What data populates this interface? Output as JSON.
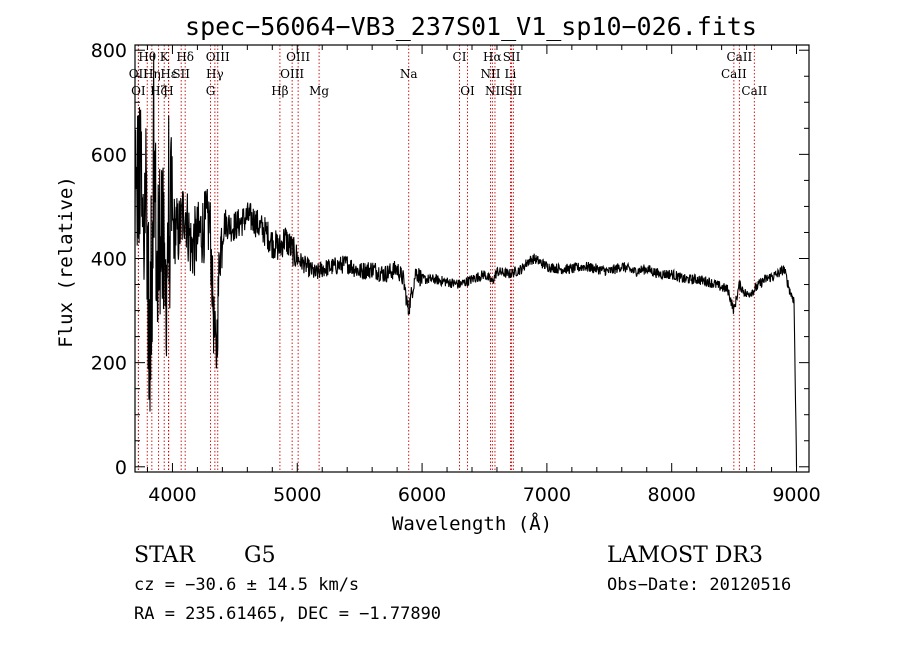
{
  "chart_data": {
    "type": "line",
    "title": "spec−56064−VB3_237S01_V1_sp10−026.fits",
    "xlabel": "Wavelength (Å)",
    "ylabel": "Flux (relative)",
    "xlim": [
      3700,
      9100
    ],
    "ylim": [
      -10,
      810
    ],
    "xticks": [
      4000,
      5000,
      6000,
      7000,
      8000,
      9000
    ],
    "xtick_labels": [
      "4000",
      "5000",
      "6000",
      "7000",
      "8000",
      "9000"
    ],
    "yticks": [
      0,
      200,
      400,
      600,
      800
    ],
    "ytick_labels": [
      "0",
      "200",
      "400",
      "600",
      "800"
    ],
    "series": [
      {
        "name": "flux",
        "x": [
          3700,
          3730,
          3760,
          3790,
          3820,
          3850,
          3880,
          3910,
          3940,
          3970,
          4000,
          4050,
          4100,
          4150,
          4200,
          4250,
          4300,
          4330,
          4350,
          4380,
          4420,
          4480,
          4550,
          4600,
          4650,
          4700,
          4750,
          4800,
          4860,
          4900,
          4950,
          5000,
          5050,
          5100,
          5150,
          5200,
          5300,
          5400,
          5500,
          5600,
          5700,
          5800,
          5850,
          5890,
          5950,
          6000,
          6100,
          6200,
          6300,
          6400,
          6500,
          6563,
          6600,
          6700,
          6800,
          6850,
          6900,
          7000,
          7100,
          7200,
          7300,
          7400,
          7500,
          7600,
          7700,
          7800,
          7900,
          8000,
          8100,
          8200,
          8300,
          8400,
          8450,
          8498,
          8542,
          8600,
          8662,
          8700,
          8750,
          8800,
          8850,
          8900,
          8950,
          8980,
          9000
        ],
        "values": [
          380,
          620,
          430,
          560,
          180,
          640,
          320,
          520,
          300,
          480,
          460,
          450,
          500,
          420,
          440,
          460,
          470,
          280,
          200,
          420,
          470,
          460,
          470,
          480,
          475,
          460,
          450,
          430,
          420,
          440,
          420,
          400,
          390,
          380,
          370,
          380,
          385,
          390,
          375,
          380,
          370,
          380,
          360,
          300,
          375,
          360,
          360,
          355,
          350,
          360,
          370,
          355,
          375,
          370,
          380,
          395,
          400,
          385,
          380,
          380,
          385,
          380,
          375,
          385,
          375,
          380,
          370,
          370,
          360,
          360,
          355,
          345,
          340,
          300,
          350,
          330,
          340,
          350,
          360,
          365,
          370,
          380,
          335,
          320,
          0
        ]
      }
    ],
    "spectral_lines": [
      {
        "label": "Hθ",
        "wavelength": 3798,
        "row": 1
      },
      {
        "label": "K",
        "wavelength": 3934,
        "row": 1
      },
      {
        "label": "Hδ",
        "wavelength": 4102,
        "row": 1
      },
      {
        "label": "OIII",
        "wavelength": 4363,
        "row": 1
      },
      {
        "label": "OIII",
        "wavelength": 5007,
        "row": 1
      },
      {
        "label": "CI",
        "wavelength": 6300,
        "row": 1
      },
      {
        "label": "Hα",
        "wavelength": 6563,
        "row": 1
      },
      {
        "label": "SII",
        "wavelength": 6717,
        "row": 1
      },
      {
        "label": "CaII",
        "wavelength": 8542,
        "row": 1
      },
      {
        "label": "OII",
        "wavelength": 3727,
        "row": 2
      },
      {
        "label": "Hη",
        "wavelength": 3835,
        "row": 2
      },
      {
        "label": "Hε",
        "wavelength": 3970,
        "row": 2
      },
      {
        "label": "SII",
        "wavelength": 4070,
        "row": 2
      },
      {
        "label": "Hγ",
        "wavelength": 4340,
        "row": 2
      },
      {
        "label": "OIII",
        "wavelength": 4959,
        "row": 2
      },
      {
        "label": "Na",
        "wavelength": 5893,
        "row": 2
      },
      {
        "label": "NII",
        "wavelength": 6548,
        "row": 2
      },
      {
        "label": "Li",
        "wavelength": 6708,
        "row": 2
      },
      {
        "label": "CaII",
        "wavelength": 8498,
        "row": 2
      },
      {
        "label": "OI",
        "wavelength": 3727,
        "row": 3
      },
      {
        "label": "Hζ",
        "wavelength": 3889,
        "row": 3
      },
      {
        "label": "H",
        "wavelength": 3968,
        "row": 3
      },
      {
        "label": "G",
        "wavelength": 4305,
        "row": 3
      },
      {
        "label": "Hβ",
        "wavelength": 4861,
        "row": 3
      },
      {
        "label": "Mg",
        "wavelength": 5175,
        "row": 3
      },
      {
        "label": "OI",
        "wavelength": 6364,
        "row": 3
      },
      {
        "label": "NII",
        "wavelength": 6584,
        "row": 3
      },
      {
        "label": "SII",
        "wavelength": 6731,
        "row": 3
      },
      {
        "label": "CaII",
        "wavelength": 8662,
        "row": 3
      }
    ]
  },
  "info": {
    "object_class": "STAR",
    "subclass": "G5",
    "survey": "LAMOST DR3",
    "redshift_text": "cz = −30.6 ± 14.5 km/s",
    "obs_date_text": "Obs−Date: 20120516",
    "coords_text": "RA = 235.61465, DEC =  −1.77890"
  },
  "colors": {
    "spectrum": "#000000",
    "line_markers": "#cc0000",
    "axes": "#000000"
  }
}
